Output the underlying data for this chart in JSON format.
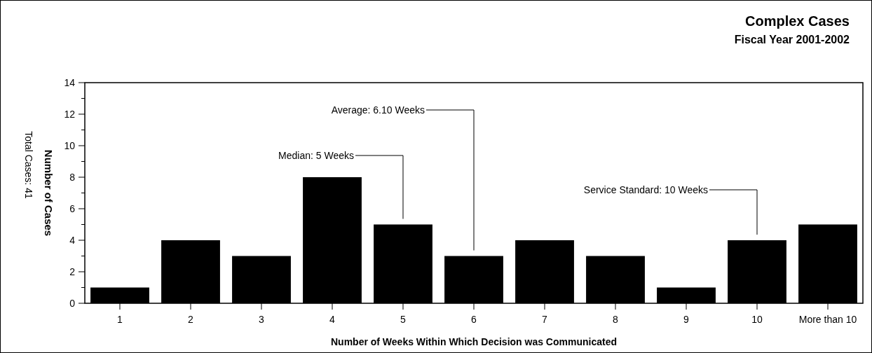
{
  "chart_data": {
    "type": "bar",
    "title": "Complex Cases",
    "subtitle": "Fiscal Year 2001-2002",
    "xlabel": "Number of Weeks Within Which Decision was Communicated",
    "ylabel": "Number of Cases",
    "categories": [
      "1",
      "2",
      "3",
      "4",
      "5",
      "6",
      "7",
      "8",
      "9",
      "10",
      "More than 10"
    ],
    "values": [
      1,
      4,
      3,
      8,
      5,
      3,
      4,
      3,
      1,
      4,
      5
    ],
    "color": "#000000",
    "ylim": [
      0,
      14
    ],
    "yticks": [
      0,
      {
        "value": 1,
        "label": null
      },
      2,
      {
        "value": 3,
        "label": null
      },
      4,
      {
        "value": 5,
        "label": null
      },
      6,
      {
        "value": 7,
        "label": null
      },
      8,
      {
        "value": 9,
        "label": null
      },
      10,
      {
        "value": 11,
        "label": null
      },
      12,
      {
        "value": 13,
        "label": null
      },
      14
    ],
    "annotations": [
      {
        "text": "Median:  5 Weeks",
        "x": "5",
        "y": 5
      },
      {
        "text": "Average:  6.10 Weeks",
        "x": "6",
        "y": 3
      },
      {
        "text": "Service Standard:  10 Weeks",
        "x": "10",
        "y": 4
      },
      "Total Cases: 41"
    ],
    "grid": false
  }
}
